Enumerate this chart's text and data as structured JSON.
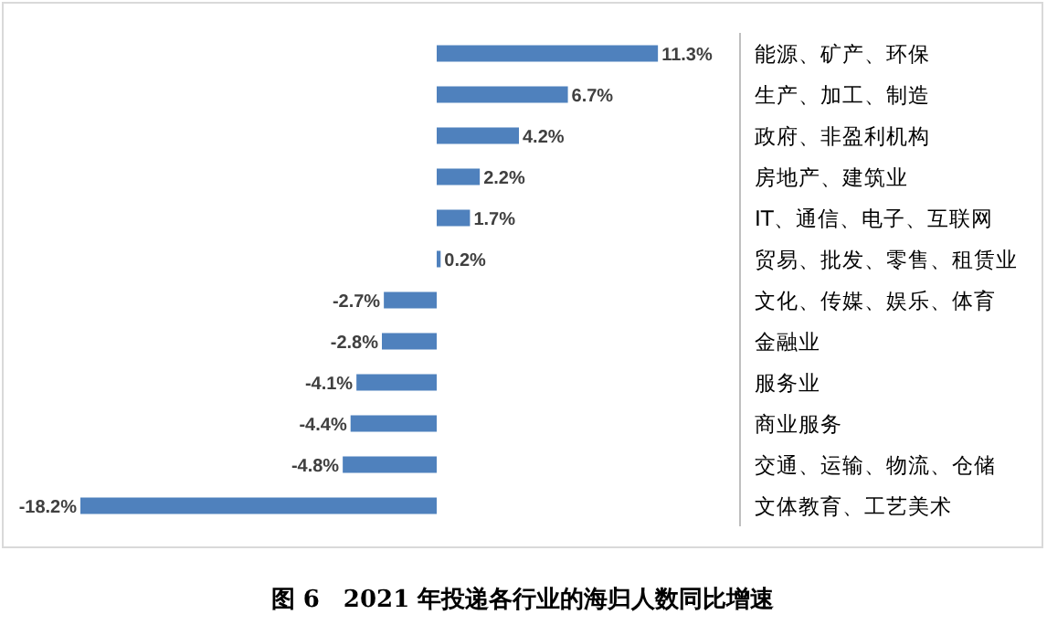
{
  "chart_data": {
    "type": "bar",
    "orientation": "horizontal",
    "title": "图 6　2021 年投递各行业的海归人数同比增速",
    "categories": [
      "能源、矿产、环保",
      "生产、加工、制造",
      "政府、非盈利机构",
      "房地产、建筑业",
      "IT、通信、电子、互联网",
      "贸易、批发、零售、租赁业",
      "文化、传媒、娱乐、体育",
      "金融业",
      "服务业",
      "商业服务",
      "交通、运输、物流、仓储",
      "文体教育、工艺美术"
    ],
    "values": [
      11.3,
      6.7,
      4.2,
      2.2,
      1.7,
      0.2,
      -2.7,
      -2.8,
      -4.1,
      -4.4,
      -4.8,
      -18.2
    ],
    "value_labels": [
      "11.3%",
      "6.7%",
      "4.2%",
      "2.2%",
      "1.7%",
      "0.2%",
      "-2.7%",
      "-2.8%",
      "-4.1%",
      "-4.4%",
      "-4.8%",
      "-18.2%"
    ],
    "color": "#4f81bd"
  }
}
